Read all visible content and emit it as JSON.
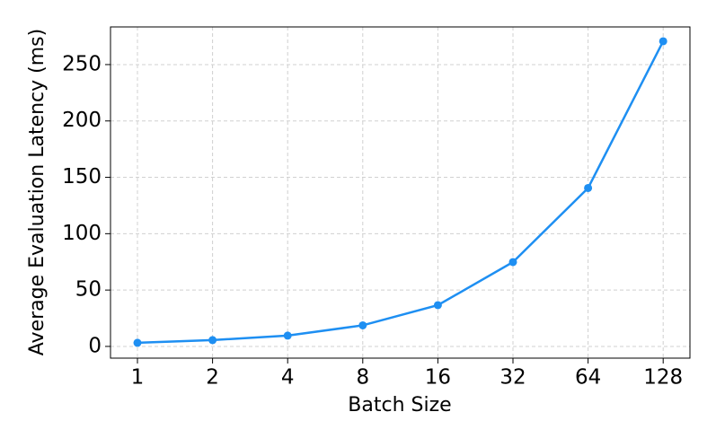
{
  "chart_data": {
    "type": "line",
    "xlabel": "Batch Size",
    "ylabel": "Average Evaluation Latency (ms)",
    "categories": [
      "1",
      "2",
      "4",
      "8",
      "16",
      "32",
      "64",
      "128"
    ],
    "series": [
      {
        "name": "Latency",
        "color": "#1e8ff2",
        "values": [
          3.2,
          5.6,
          9.6,
          18.7,
          36.6,
          74.8,
          140.5,
          270.7
        ]
      }
    ],
    "ylim": [
      -10.4,
      283.4
    ],
    "yticks": [
      0,
      50,
      100,
      150,
      200,
      250
    ],
    "grid": true
  }
}
